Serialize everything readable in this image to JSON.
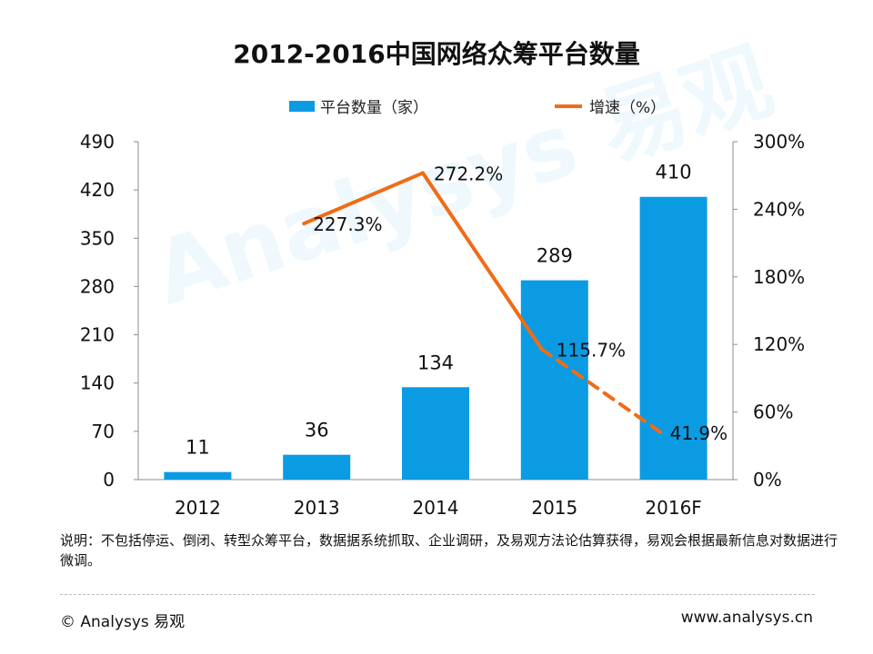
{
  "chart_data": {
    "type": "bar+line",
    "title": "2012-2016中国网络众筹平台数量",
    "categories": [
      "2012",
      "2013",
      "2014",
      "2015",
      "2016F"
    ],
    "series": [
      {
        "name": "平台数量（家）",
        "type": "bar",
        "axis": "left",
        "values": [
          11,
          36,
          134,
          289,
          410
        ],
        "labels": [
          "11",
          "36",
          "134",
          "289",
          "410"
        ],
        "color": "#0a9be3"
      },
      {
        "name": "增速（%）",
        "type": "line",
        "axis": "right",
        "values": [
          null,
          227.3,
          272.2,
          115.7,
          41.9
        ],
        "labels": [
          "",
          "227.3%",
          "272.2%",
          "115.7%",
          "41.9%"
        ],
        "dashed_last_segment": true,
        "color": "#ef6c16"
      }
    ],
    "left_axis": {
      "ylim": [
        0,
        490
      ],
      "ticks": [
        "0",
        "70",
        "140",
        "210",
        "280",
        "350",
        "420",
        "490"
      ]
    },
    "right_axis": {
      "ylim": [
        0,
        300
      ],
      "ticks": [
        "0%",
        "60%",
        "120%",
        "180%",
        "240%",
        "300%"
      ]
    },
    "legend_position": "top-center"
  },
  "legend": {
    "bar_label": "平台数量（家）",
    "line_label": "增速（%）"
  },
  "note": "说明：不包括停运、倒闭、转型众筹平台，数据据系统抓取、企业调研，及易观方法论估算获得，易观会根据最新信息对数据进行微调。",
  "watermark": "Analysys 易观",
  "footer": {
    "left": "© Analysys 易观",
    "right": "www.analysys.cn"
  }
}
